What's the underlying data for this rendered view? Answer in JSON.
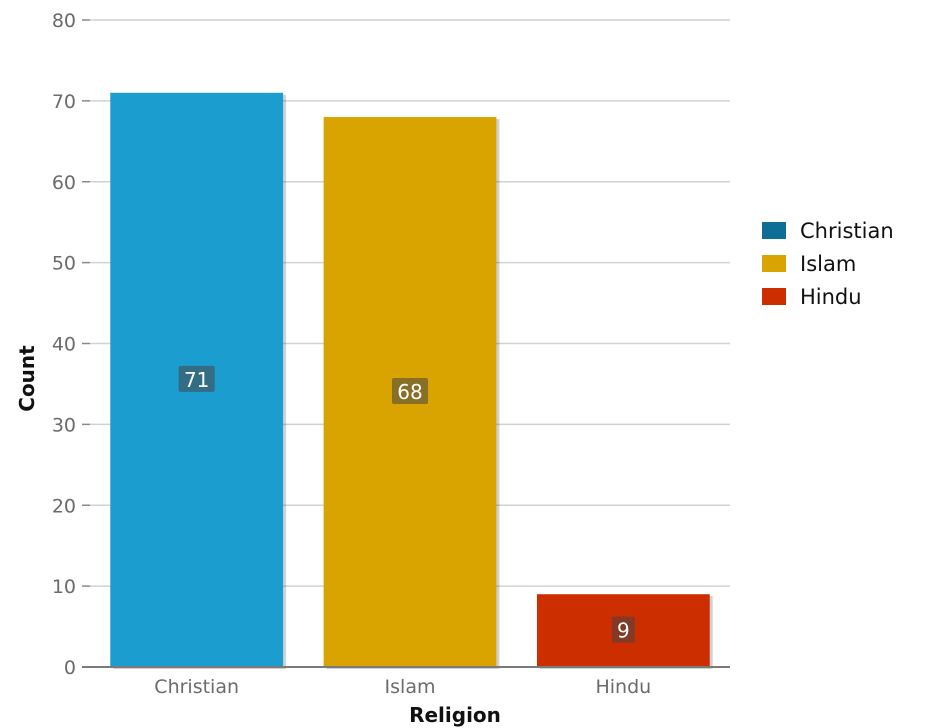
{
  "chart_data": {
    "type": "bar",
    "title": "",
    "xlabel": "Religion",
    "ylabel": "Count",
    "categories": [
      "Christian",
      "Islam",
      "Hindu"
    ],
    "values": [
      71,
      68,
      9
    ],
    "colors": [
      "#1b9dd0",
      "#d9a300",
      "#cc2e00"
    ],
    "ylim": [
      0,
      80
    ],
    "yticks": [
      0,
      10,
      20,
      30,
      40,
      50,
      60,
      70,
      80
    ],
    "grid": true,
    "legend": {
      "position": "right",
      "entries": [
        {
          "label": "Christian",
          "color": "#0f6e96"
        },
        {
          "label": "Islam",
          "color": "#d9a300"
        },
        {
          "label": "Hindu",
          "color": "#cc2e00"
        }
      ]
    }
  }
}
